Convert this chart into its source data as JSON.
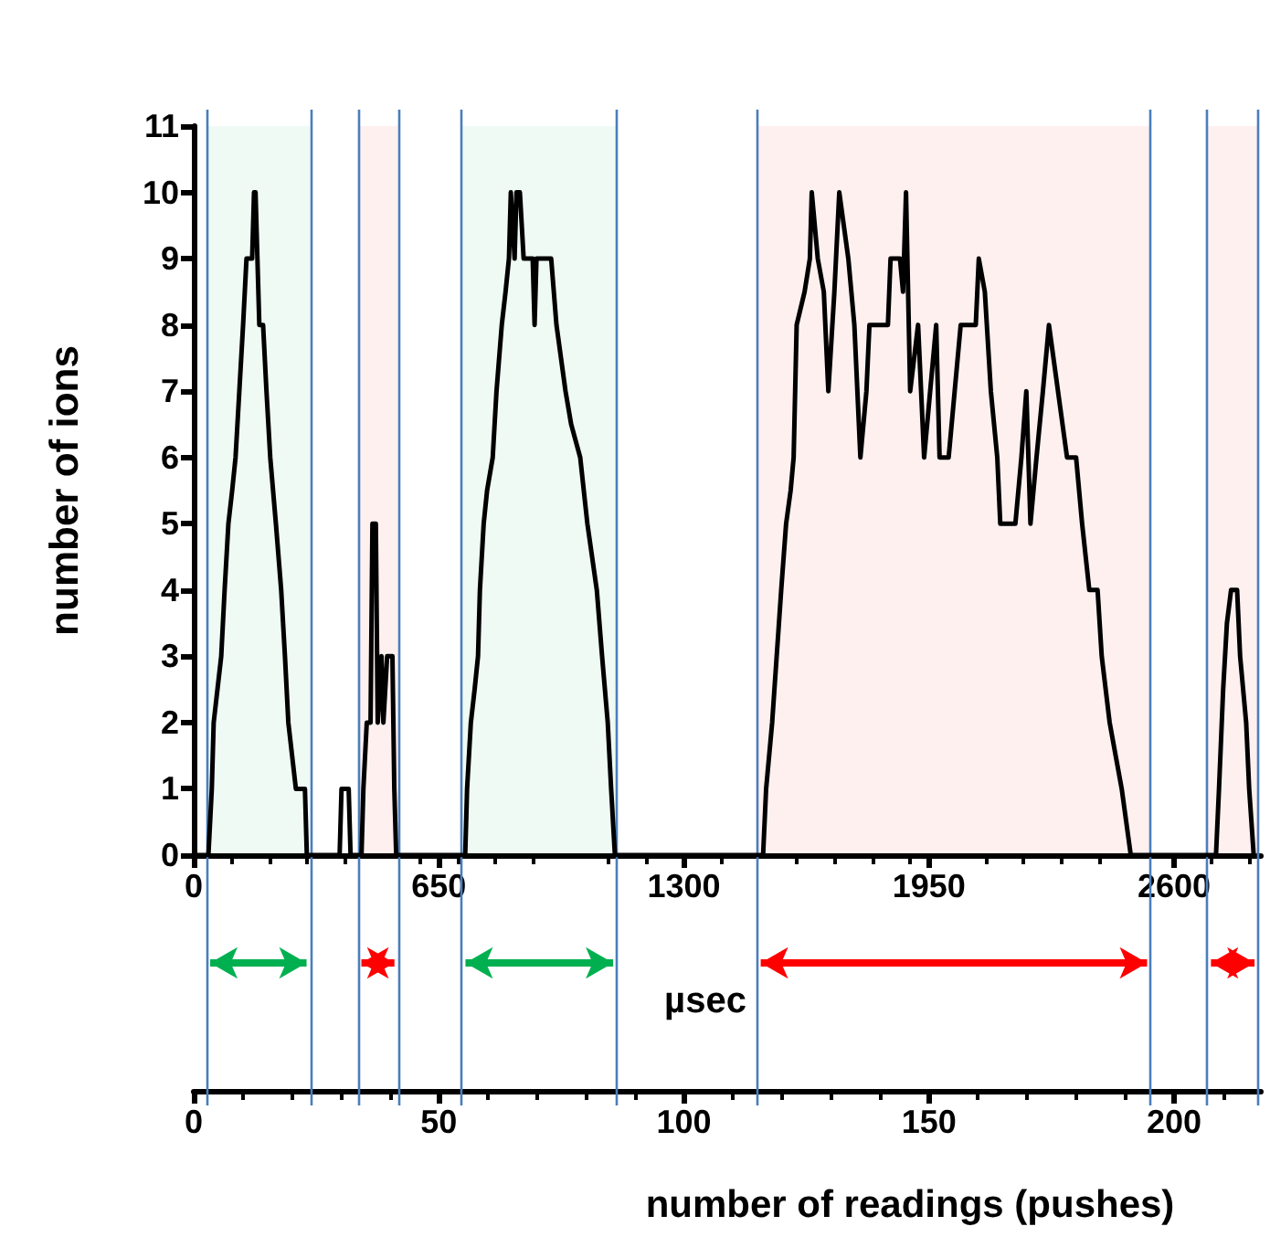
{
  "chart_data": {
    "type": "line",
    "xlabel": "µsec",
    "ylabel": "number of ions",
    "x2label": "number of readings (pushes)",
    "xlim": [
      0,
      2830
    ],
    "xticks": [
      0,
      650,
      1300,
      1950,
      2600
    ],
    "x2lim": [
      0,
      217.7
    ],
    "x2ticks": [
      0,
      50,
      100,
      150,
      200
    ],
    "ylim": [
      0,
      11
    ],
    "yticks": [
      0,
      1,
      2,
      3,
      4,
      5,
      6,
      7,
      8,
      9,
      10,
      11
    ],
    "grid": false,
    "marker": "none",
    "line_style": "solid",
    "series": [
      {
        "color": "#000000",
        "x": [
          0,
          39,
          48,
          53,
          63,
          73,
          82,
          92,
          102,
          111,
          121,
          131,
          140,
          155,
          160,
          164,
          169,
          174,
          184,
          193,
          203,
          218,
          232,
          242,
          251,
          271,
          295,
          300,
          387,
          392,
          411,
          416,
          445,
          450,
          459,
          469,
          474,
          483,
          488,
          498,
          503,
          513,
          527,
          532,
          537,
          720,
          725,
          735,
          745,
          754,
          759,
          769,
          778,
          793,
          803,
          817,
          827,
          836,
          841,
          851,
          856,
          865,
          875,
          899,
          904,
          909,
          948,
          962,
          986,
          1001,
          1025,
          1044,
          1069,
          1083,
          1098,
          1107,
          1117,
          1510,
          1518,
          1534,
          1546,
          1558,
          1571,
          1583,
          1591,
          1599,
          1620,
          1634,
          1639,
          1655,
          1671,
          1683,
          1699,
          1712,
          1736,
          1752,
          1768,
          1784,
          1792,
          1841,
          1848,
          1873,
          1881,
          1889,
          1900,
          1921,
          1937,
          1953,
          1969,
          1978,
          2002,
          2018,
          2034,
          2074,
          2082,
          2098,
          2114,
          2131,
          2139,
          2179,
          2195,
          2208,
          2219,
          2235,
          2252,
          2268,
          2292,
          2316,
          2340,
          2356,
          2375,
          2397,
          2408,
          2429,
          2445,
          2461,
          2485,
          2711,
          2719,
          2730,
          2740,
          2751,
          2767,
          2775,
          2791,
          2799,
          2811
        ],
        "values": [
          0,
          0,
          1,
          2,
          2.5,
          3,
          4,
          5,
          5.5,
          6,
          7,
          8,
          9,
          9,
          10,
          10,
          9,
          8,
          8,
          7,
          6,
          5,
          4,
          3,
          2,
          1,
          1,
          0,
          0,
          1,
          1,
          0,
          0,
          1,
          2,
          2,
          5,
          5,
          2,
          3,
          2,
          3,
          3,
          1,
          0,
          0,
          1,
          2,
          2.5,
          3,
          4,
          5,
          5.5,
          6,
          7,
          8,
          8.5,
          9,
          10,
          9,
          10,
          10,
          9,
          9,
          8,
          9,
          9,
          8,
          7,
          6.5,
          6,
          5,
          4,
          3,
          2,
          1,
          0,
          0,
          1,
          2,
          3,
          4,
          5,
          5.5,
          6,
          8,
          8.5,
          9,
          10,
          9,
          8.5,
          7,
          8.5,
          10,
          9,
          8,
          6,
          7,
          8,
          8,
          9,
          9,
          8.5,
          10,
          7,
          8,
          6,
          7,
          8,
          6,
          6,
          7,
          8,
          8,
          9,
          8.5,
          7,
          6,
          5,
          5,
          6,
          7,
          5,
          6,
          7,
          8,
          7,
          6,
          6,
          5,
          4,
          4,
          3,
          2,
          1.5,
          1,
          0,
          0,
          1,
          2.5,
          3.5,
          4,
          4,
          3,
          2,
          1,
          0
        ]
      }
    ],
    "ref_lines": [
      {
        "axis": "x",
        "value": 34,
        "color": "#4a7ebb"
      },
      {
        "axis": "x",
        "value": 309,
        "color": "#4a7ebb"
      },
      {
        "axis": "x",
        "value": 435,
        "color": "#4a7ebb"
      },
      {
        "axis": "x",
        "value": 542,
        "color": "#4a7ebb"
      },
      {
        "axis": "x",
        "value": 711,
        "color": "#4a7ebb"
      },
      {
        "axis": "x",
        "value": 1122,
        "color": "#4a7ebb"
      },
      {
        "axis": "x",
        "value": 1494,
        "color": "#4a7ebb"
      },
      {
        "axis": "x",
        "value": 2538,
        "color": "#4a7ebb"
      },
      {
        "axis": "x",
        "value": 2688,
        "color": "#4a7ebb"
      },
      {
        "axis": "x",
        "value": 2823,
        "color": "#4a7ebb"
      }
    ],
    "bands": [
      {
        "axis": "x",
        "from": 34,
        "to": 309,
        "color": "#00b050"
      },
      {
        "axis": "x",
        "from": 435,
        "to": 542,
        "color": "#ff0000"
      },
      {
        "axis": "x",
        "from": 711,
        "to": 1122,
        "color": "#00b050"
      },
      {
        "axis": "x",
        "from": 1494,
        "to": 2538,
        "color": "#ff0000"
      },
      {
        "axis": "x",
        "from": 2688,
        "to": 2823,
        "color": "#ff0000"
      }
    ]
  }
}
